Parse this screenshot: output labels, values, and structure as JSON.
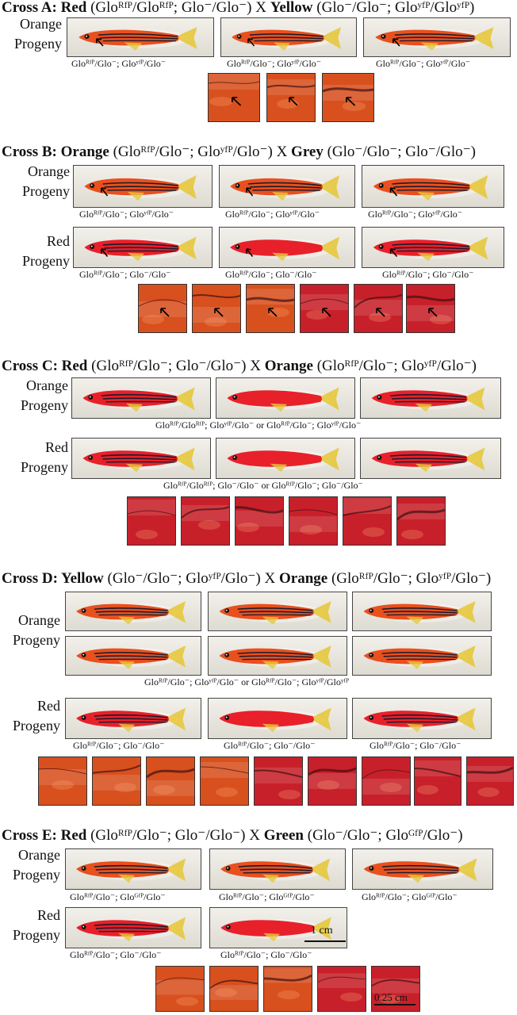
{
  "crosses": {
    "a": {
      "title_name": "Cross A: ",
      "female": "Red",
      "female_geno": " (Gloᴿᶠᴾ/Gloᴿᶠᴾ; Glo⁻/Glo⁻) X ",
      "male": "Yellow",
      "male_geno": " (Glo⁻/Glo⁻; Gloʸᶠᴾ/Gloʸᶠᴾ)",
      "orange_label": "Orange\nProgeny",
      "geno": [
        "Gloᴿᶠᴾ/Glo⁻; Gloʸᶠᴾ/Glo⁻",
        "Gloᴿᶠᴾ/Glo⁻; Gloʸᶠᴾ/Glo⁻",
        "Gloᴿᶠᴾ/Glo⁻; Gloʸᶠᴾ/Glo⁻"
      ]
    },
    "b": {
      "title_name": "Cross B: ",
      "female": "Orange",
      "female_geno": " (Gloᴿᶠᴾ/Glo⁻; Gloʸᶠᴾ/Glo⁻) X ",
      "male": "Grey",
      "male_geno": " (Glo⁻/Glo⁻; Glo⁻/Glo⁻)",
      "orange_label": "Orange\nProgeny",
      "red_label": "Red\nProgeny",
      "geno_orange": [
        "Gloᴿᶠᴾ/Glo⁻; Gloʸᶠᴾ/Glo⁻",
        "Gloᴿᶠᴾ/Glo⁻; Gloʸᶠᴾ/Glo⁻",
        "Gloᴿᶠᴾ/Glo⁻; Gloʸᶠᴾ/Glo⁻"
      ],
      "geno_red": [
        "Gloᴿᶠᴾ/Glo⁻; Glo⁻/Glo⁻",
        "Gloᴿᶠᴾ/Glo⁻; Glo⁻/Glo⁻",
        "Gloᴿᶠᴾ/Glo⁻; Glo⁻/Glo⁻"
      ]
    },
    "c": {
      "title_name": "Cross C: ",
      "female": "Red",
      "female_geno": " (Gloᴿᶠᴾ/Glo⁻; Glo⁻/Glo⁻) X ",
      "male": "Orange",
      "male_geno": " (Gloᴿᶠᴾ/Glo⁻; Gloʸᶠᴾ/Glo⁻)",
      "orange_label": "Orange\nProgeny",
      "red_label": "Red\nProgeny",
      "geno_orange": "Gloᴿᶠᴾ/Gloᴿᶠᴾ; Gloʸᶠᴾ/Glo⁻ or Gloᴿᶠᴾ/Glo⁻; Gloʸᶠᴾ/Glo⁻",
      "geno_red": "Gloᴿᶠᴾ/Gloᴿᶠᴾ; Glo⁻/Glo⁻ or Gloᴿᶠᴾ/Glo⁻; Glo⁻/Glo⁻"
    },
    "d": {
      "title_name": "Cross D: ",
      "female": "Yellow",
      "female_geno": " (Glo⁻/Glo⁻; Gloʸᶠᴾ/Glo⁻) X ",
      "male": "Orange",
      "male_geno": " (Gloᴿᶠᴾ/Glo⁻; Gloʸᶠᴾ/Glo⁻)",
      "orange_label": "Orange\nProgeny",
      "red_label": "Red\nProgeny",
      "geno_orange": "Gloᴿᶠᴾ/Glo⁻; Gloʸᶠᴾ/Glo⁻ or Gloᴿᶠᴾ/Glo⁻; Gloʸᶠᴾ/Gloʸᶠᴾ",
      "geno_red": [
        "Gloᴿᶠᴾ/Glo⁻; Glo⁻/Glo⁻",
        "Gloᴿᶠᴾ/Glo⁻; Glo⁻/Glo⁻",
        "Gloᴿᶠᴾ/Glo⁻; Glo⁻/Glo⁻"
      ]
    },
    "e": {
      "title_name": "Cross E: ",
      "female": "Red",
      "female_geno": " (Gloᴿᶠᴾ/Glo⁻; Glo⁻/Glo⁻) X ",
      "male": "Green",
      "male_geno": " (Glo⁻/Glo⁻; Gloᴳᶠᴾ/Glo⁻)",
      "orange_label": "Orange\nProgeny",
      "red_label": "Red\nProgeny",
      "geno_orange": [
        "Gloᴿᶠᴾ/Glo⁻; Gloᴳᶠᴾ/Glo⁻",
        "Gloᴿᶠᴾ/Glo⁻; Gloᴳᶠᴾ/Glo⁻",
        "Gloᴿᶠᴾ/Glo⁻; Gloᴳᶠᴾ/Glo⁻"
      ],
      "geno_red": [
        "Gloᴿᶠᴾ/Glo⁻; Glo⁻/Glo⁻",
        "Gloᴿᶠᴾ/Glo⁻; Glo⁻/Glo⁻"
      ],
      "scale_1cm": "1 cm",
      "scale_025cm": "0.25 cm"
    }
  },
  "colors": {
    "orange_fish": "#e8501e",
    "red_fish": "#e8202a",
    "stripe": "#1a1a2a",
    "fin_yellow": "#e6c83c",
    "tile_red": "#c8202a",
    "tile_orange": "#d8501e"
  }
}
